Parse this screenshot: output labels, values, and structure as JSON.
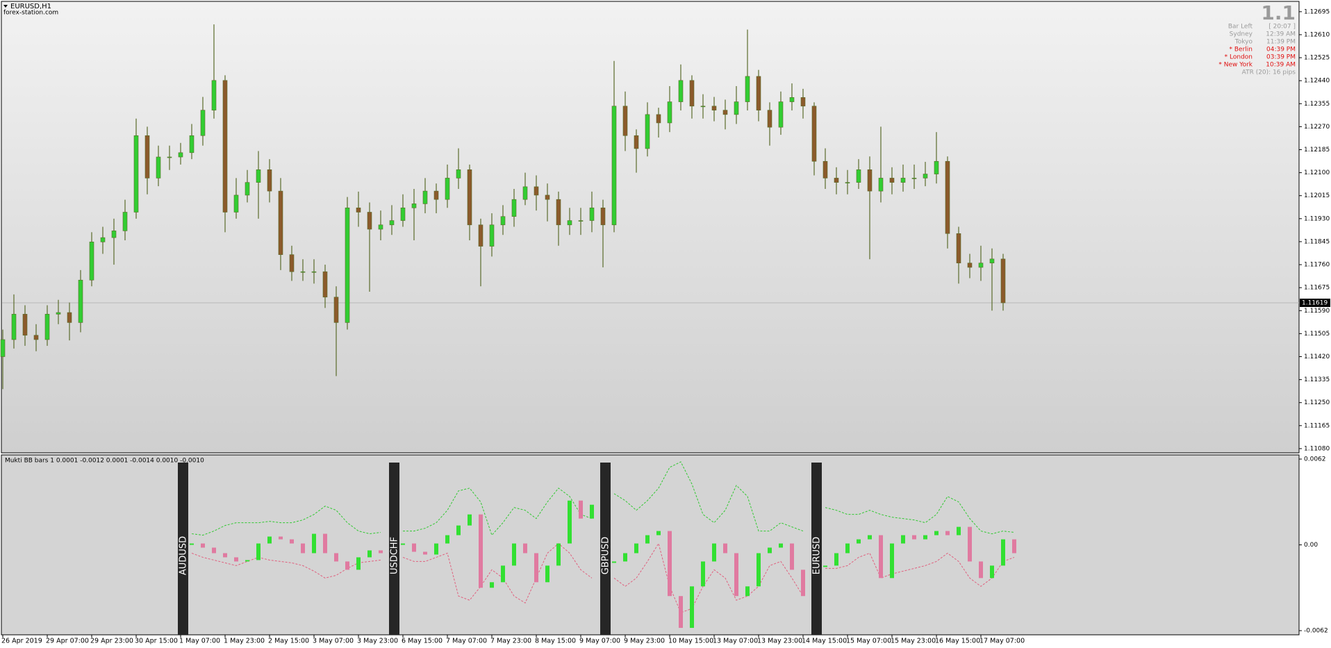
{
  "info": {
    "big": "1.1",
    "rows": [
      {
        "label": "Bar Left",
        "value": "[ 20:07 ]",
        "color": "#9a9a9a"
      },
      {
        "label": "Sydney",
        "value": "12:39 AM",
        "color": "#9a9a9a"
      },
      {
        "label": "Tokyo",
        "value": "11:39 PM",
        "color": "#9a9a9a"
      },
      {
        "label": "* Berlin",
        "value": "04:39 PM",
        "color": "#e01010"
      },
      {
        "label": "* London",
        "value": "03:39 PM",
        "color": "#e01010"
      },
      {
        "label": "* New York",
        "value": "10:39 AM",
        "color": "#e01010"
      }
    ],
    "atr": "ATR (20): 16 pips"
  },
  "chart_data": [
    {
      "type": "candlestick",
      "title": "EURUSD,H1",
      "subtitle": "forex-station.com",
      "categories": [
        "26 Apr 2019",
        null,
        null,
        null,
        "29 Apr 07:00",
        null,
        null,
        null,
        "29 Apr 23:00",
        null,
        null,
        null,
        "30 Apr 15:00",
        null,
        null,
        null,
        "1 May 07:00",
        null,
        null,
        null,
        "1 May 23:00",
        null,
        null,
        null,
        "2 May 15:00",
        null,
        null,
        null,
        "3 May 07:00",
        null,
        null,
        null,
        "3 May 23:00",
        null,
        null,
        null,
        "6 May 15:00",
        null,
        null,
        null,
        "7 May 07:00",
        null,
        null,
        null,
        "7 May 23:00",
        null,
        null,
        null,
        "8 May 15:00",
        null,
        null,
        null,
        "9 May 07:00",
        null,
        null,
        null,
        "9 May 23:00",
        null,
        null,
        null,
        "10 May 15:00",
        null,
        null,
        null,
        "13 May 07:00",
        null,
        null,
        null,
        "13 May 23:00",
        null,
        null,
        null,
        "14 May 15:00",
        null,
        null,
        null,
        "15 May 07:00",
        null,
        null,
        null,
        "15 May 23:00",
        null,
        null,
        null,
        "16 May 15:00",
        null,
        null,
        null,
        "17 May 07:00",
        null,
        null
      ],
      "open": [
        1.1142,
        1.11483,
        1.11577,
        1.11499,
        1.11483,
        1.11577,
        1.11583,
        1.11546,
        1.11703,
        1.11844,
        1.1186,
        1.11885,
        1.11954,
        1.12237,
        1.1208,
        1.12158,
        1.12158,
        1.12174,
        1.12237,
        1.12331,
        1.12441,
        1.11954,
        1.12017,
        1.12064,
        1.12111,
        1.12032,
        1.11797,
        1.11734,
        1.11734,
        1.11734,
        1.1164,
        1.11546,
        1.1197,
        1.11954,
        1.11891,
        1.11907,
        1.11923,
        1.1197,
        1.11985,
        1.12032,
        1.12001,
        1.1208,
        1.12111,
        1.11907,
        1.11828,
        1.11907,
        1.11938,
        1.12001,
        1.12048,
        1.12017,
        1.12001,
        1.11907,
        1.11923,
        1.11923,
        1.1197,
        1.11907,
        1.12346,
        1.12237,
        1.12189,
        1.12315,
        1.12284,
        1.12362,
        1.12441,
        1.12346,
        1.12346,
        1.12331,
        1.12315,
        1.12362,
        1.12456,
        1.12331,
        1.12268,
        1.12362,
        1.12378,
        1.12346,
        1.12142,
        1.1208,
        1.12064,
        1.12064,
        1.12111,
        1.12032,
        1.1208,
        1.12064,
        1.1208,
        1.1208,
        1.12095,
        1.12142,
        1.11875,
        1.11766,
        1.1175,
        1.11766,
        1.11781
      ],
      "high": [
        1.1152,
        1.1165,
        1.1161,
        1.1154,
        1.1161,
        1.1163,
        1.1162,
        1.1174,
        1.1188,
        1.119,
        1.1193,
        1.12,
        1.123,
        1.1227,
        1.122,
        1.122,
        1.1221,
        1.1228,
        1.1238,
        1.12648,
        1.1246,
        1.1208,
        1.1211,
        1.1218,
        1.1215,
        1.1208,
        1.1183,
        1.1178,
        1.1178,
        1.1176,
        1.1168,
        1.1201,
        1.1203,
        1.1199,
        1.1196,
        1.1198,
        1.1202,
        1.1204,
        1.1208,
        1.1206,
        1.1213,
        1.1219,
        1.1213,
        1.1193,
        1.1195,
        1.1198,
        1.1204,
        1.121,
        1.1209,
        1.1206,
        1.1203,
        1.1197,
        1.1197,
        1.1203,
        1.12,
        1.12513,
        1.124,
        1.1226,
        1.1236,
        1.1234,
        1.1242,
        1.125,
        1.1246,
        1.1239,
        1.1238,
        1.1237,
        1.1242,
        1.12629,
        1.1248,
        1.1236,
        1.124,
        1.1243,
        1.1241,
        1.1236,
        1.1219,
        1.1212,
        1.1211,
        1.1215,
        1.1216,
        1.1227,
        1.1212,
        1.1213,
        1.1213,
        1.1214,
        1.1225,
        1.1216,
        1.119,
        1.118,
        1.1183,
        1.1182,
        1.118
      ],
      "low": [
        1.113,
        1.1145,
        1.1146,
        1.1144,
        1.1146,
        1.1154,
        1.1148,
        1.1151,
        1.1168,
        1.118,
        1.1176,
        1.1185,
        1.1193,
        1.1202,
        1.1205,
        1.1211,
        1.1213,
        1.1215,
        1.122,
        1.123,
        1.1188,
        1.1193,
        1.1199,
        1.1193,
        1.1199,
        1.1174,
        1.117,
        1.117,
        1.1169,
        1.116,
        1.11348,
        1.1152,
        1.119,
        1.1166,
        1.1185,
        1.1187,
        1.119,
        1.1185,
        1.1195,
        1.1195,
        1.1197,
        1.1204,
        1.1185,
        1.1168,
        1.1179,
        1.1187,
        1.119,
        1.1198,
        1.1196,
        1.1192,
        1.1183,
        1.1187,
        1.1187,
        1.1188,
        1.1175,
        1.1188,
        1.1218,
        1.121,
        1.1216,
        1.1223,
        1.1225,
        1.1233,
        1.123,
        1.123,
        1.1229,
        1.1226,
        1.1228,
        1.1233,
        1.1229,
        1.122,
        1.1224,
        1.1233,
        1.123,
        1.1209,
        1.1204,
        1.1202,
        1.1202,
        1.1204,
        1.1178,
        1.1199,
        1.1202,
        1.1203,
        1.1204,
        1.1205,
        1.1206,
        1.1182,
        1.1169,
        1.1171,
        1.117,
        1.1159,
        1.1159
      ],
      "close": [
        1.11483,
        1.11577,
        1.11499,
        1.11483,
        1.11577,
        1.11583,
        1.11546,
        1.11703,
        1.11844,
        1.1186,
        1.11885,
        1.11954,
        1.12237,
        1.1208,
        1.12158,
        1.12158,
        1.12174,
        1.12237,
        1.12331,
        1.12441,
        1.11954,
        1.12017,
        1.12064,
        1.12111,
        1.12032,
        1.11797,
        1.11734,
        1.11734,
        1.11734,
        1.1164,
        1.11546,
        1.1197,
        1.11954,
        1.11891,
        1.11907,
        1.11923,
        1.1197,
        1.11985,
        1.12032,
        1.12001,
        1.1208,
        1.12111,
        1.11907,
        1.11828,
        1.11907,
        1.11938,
        1.12001,
        1.12048,
        1.12017,
        1.12001,
        1.11907,
        1.11923,
        1.11923,
        1.1197,
        1.11907,
        1.12346,
        1.12237,
        1.12189,
        1.12315,
        1.12284,
        1.12362,
        1.12441,
        1.12346,
        1.12346,
        1.12331,
        1.12315,
        1.12362,
        1.12456,
        1.12331,
        1.12268,
        1.12362,
        1.12378,
        1.12346,
        1.12142,
        1.1208,
        1.12064,
        1.12064,
        1.12111,
        1.12032,
        1.1208,
        1.12064,
        1.1208,
        1.1208,
        1.12095,
        1.12142,
        1.11875,
        1.11766,
        1.1175,
        1.11766,
        1.11781,
        1.11619
      ],
      "up_color": "#32cd32",
      "down_color": "#8b5a2b",
      "ylim": [
        1.11067,
        1.12728
      ],
      "yticks": [
        {
          "value": 1.12695,
          "label": "1.12695"
        },
        {
          "value": 1.1261,
          "label": "1.12610"
        },
        {
          "value": 1.12525,
          "label": "1.12525"
        },
        {
          "value": 1.1244,
          "label": "1.12440"
        },
        {
          "value": 1.12355,
          "label": "1.12355"
        },
        {
          "value": 1.1227,
          "label": "1.12270"
        },
        {
          "value": 1.12185,
          "label": "1.12185"
        },
        {
          "value": 1.121,
          "label": "1.12100"
        },
        {
          "value": 1.12015,
          "label": "1.12015"
        },
        {
          "value": 1.1193,
          "label": "1.11930"
        },
        {
          "value": 1.11845,
          "label": "1.11845"
        },
        {
          "value": 1.1176,
          "label": "1.11760"
        },
        {
          "value": 1.11675,
          "label": "1.11675"
        },
        {
          "value": 1.1159,
          "label": "1.11590"
        },
        {
          "value": 1.11505,
          "label": "1.11505"
        },
        {
          "value": 1.1142,
          "label": "1.11420"
        },
        {
          "value": 1.11335,
          "label": "1.11335"
        },
        {
          "value": 1.1125,
          "label": "1.11250"
        },
        {
          "value": 1.11165,
          "label": "1.11165"
        },
        {
          "value": 1.1108,
          "label": "1.11080"
        }
      ],
      "last_price": 1.11619
    },
    {
      "type": "bb-bars",
      "title": "Mukti BB bars 1 0.0001 -0.0012 0.0001 -0.0014 0.0010 -0.0010",
      "ylim": [
        -0.0065,
        0.0065
      ],
      "yticks": [
        0.0062,
        {
          "value": 0,
          "label": "0.00"
        },
        -0.0062
      ],
      "up_color": "#32e032",
      "down_color": "#e07aa0",
      "upper_color": "#32c832",
      "lower_color": "#e0607e",
      "segments": [
        {
          "name": "AUDUSD",
          "values": [
            0.0001,
            -0.0002,
            -0.0006,
            -0.0009,
            -0.0012,
            -0.0011,
            0.0001,
            0.0006,
            0.0004,
            0.0001,
            -0.0006,
            0.0008,
            -0.0006,
            -0.0012,
            -0.0018,
            -0.0009,
            -0.0004,
            -0.0006
          ],
          "upper": [
            0.0008,
            0.0007,
            0.001,
            0.0014,
            0.0016,
            0.0016,
            0.0016,
            0.0017,
            0.0016,
            0.0016,
            0.0018,
            0.0022,
            0.0028,
            0.0025,
            0.0016,
            0.001,
            0.0008,
            0.0009
          ],
          "lower": [
            -0.0006,
            -0.0009,
            -0.0011,
            -0.0013,
            -0.0015,
            -0.0012,
            -0.0009,
            -0.0011,
            -0.0012,
            -0.0013,
            -0.0015,
            -0.0019,
            -0.0024,
            -0.0022,
            -0.0017,
            -0.0013,
            -0.0012,
            -0.0011
          ]
        },
        {
          "name": "USDCHF",
          "values": [
            0.0001,
            -0.0005,
            -0.0007,
            0.0001,
            0.0007,
            0.0014,
            0.0022,
            -0.0031,
            -0.0027,
            -0.0015,
            0.0001,
            -0.0006,
            -0.0027,
            -0.0015,
            0.0001,
            0.0032,
            0.0019,
            0.0029
          ],
          "upper": [
            0.001,
            0.001,
            0.0012,
            0.0016,
            0.0025,
            0.0039,
            0.0041,
            0.0031,
            0.0007,
            0.0016,
            0.0027,
            0.0025,
            0.0019,
            0.0031,
            0.0041,
            0.0035,
            0.0022,
            0.0019
          ],
          "lower": [
            -0.0009,
            -0.0012,
            -0.0012,
            -0.0009,
            -0.0006,
            -0.0037,
            -0.004,
            -0.003,
            -0.0018,
            -0.0024,
            -0.0037,
            -0.0042,
            -0.0024,
            -0.0006,
            0.0001,
            -0.0006,
            -0.0018,
            -0.0024
          ]
        },
        {
          "name": "GBPUSD",
          "values": [
            -0.0012,
            -0.0006,
            0.0001,
            0.0007,
            0.001,
            -0.0037,
            -0.006,
            -0.003,
            -0.0012,
            0.0001,
            -0.0006,
            -0.0037,
            -0.003,
            -0.0006,
            -0.0002,
            0.0001,
            -0.0018,
            -0.0037
          ],
          "upper": [
            0.0037,
            0.0032,
            0.0025,
            0.0032,
            0.0041,
            0.0056,
            0.006,
            0.0044,
            0.0022,
            0.0016,
            0.0025,
            0.0043,
            0.0035,
            0.001,
            0.001,
            0.0016,
            0.0013,
            0.001
          ],
          "lower": [
            -0.0024,
            -0.003,
            -0.0024,
            -0.0012,
            0.0001,
            -0.003,
            -0.0049,
            -0.0046,
            -0.003,
            -0.0018,
            -0.0024,
            -0.004,
            -0.0037,
            -0.003,
            -0.0015,
            -0.0012,
            -0.0024,
            -0.0037
          ]
        },
        {
          "name": "EURUSD",
          "values": [
            -0.0015,
            -0.0006,
            0.0001,
            0.0004,
            0.0007,
            -0.0024,
            0.0001,
            0.0007,
            0.0004,
            0.0007,
            0.001,
            0.0007,
            0.0013,
            -0.0012,
            -0.0024,
            -0.0015,
            0.0004,
            -0.0006
          ],
          "upper": [
            0.0027,
            0.0025,
            0.0022,
            0.0022,
            0.0025,
            0.0022,
            0.002,
            0.0019,
            0.0018,
            0.0016,
            0.0022,
            0.0035,
            0.0031,
            0.0019,
            0.001,
            0.0008,
            0.001,
            0.0009
          ],
          "lower": [
            -0.0017,
            -0.0017,
            -0.0015,
            -0.0009,
            -0.0006,
            -0.0024,
            -0.0021,
            -0.0019,
            -0.0017,
            -0.0015,
            -0.0012,
            -0.0006,
            -0.0012,
            -0.0024,
            -0.003,
            -0.0024,
            -0.0012,
            -0.0009
          ]
        }
      ]
    }
  ]
}
